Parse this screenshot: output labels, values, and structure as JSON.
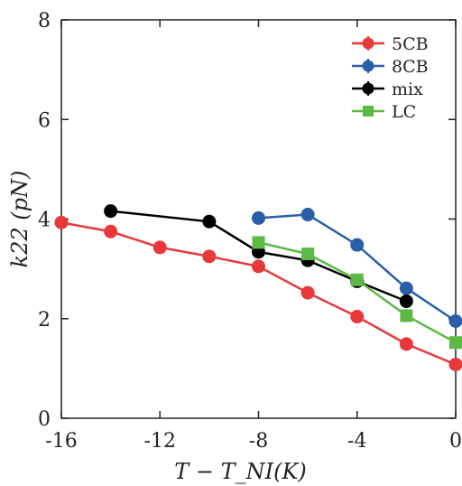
{
  "chart_data": {
    "type": "line",
    "xlabel": "T − T_NI(K)",
    "ylabel": "k22 (pN)",
    "xlim": [
      -16,
      0
    ],
    "ylim": [
      0,
      8
    ],
    "xticks": [
      -16,
      -12,
      -8,
      -4,
      0
    ],
    "xtick_labels": [
      "-16",
      "-12",
      "-8",
      "-4",
      "0"
    ],
    "yticks": [
      0,
      2,
      4,
      6,
      8
    ],
    "ytick_labels": [
      "0",
      "2",
      "4",
      "6",
      "8"
    ],
    "grid": false,
    "legend_position": "top-right",
    "series": [
      {
        "name": "5CB",
        "color": "#e8383a",
        "marker": "circle",
        "x": [
          -16,
          -14,
          -12,
          -10,
          -8,
          -6,
          -4,
          -2,
          0
        ],
        "y": [
          3.93,
          3.75,
          3.43,
          3.25,
          3.05,
          2.52,
          2.04,
          1.49,
          1.08
        ]
      },
      {
        "name": "8CB",
        "color": "#2a5ea8",
        "marker": "circle",
        "x": [
          -8,
          -6,
          -4,
          -2,
          0
        ],
        "y": [
          4.02,
          4.09,
          3.48,
          2.61,
          1.95
        ]
      },
      {
        "name": "mix",
        "color": "#000000",
        "marker": "circle",
        "x": [
          -14,
          -10,
          -8,
          -6,
          -4,
          -2
        ],
        "y": [
          4.16,
          3.95,
          3.34,
          3.17,
          2.75,
          2.35
        ]
      },
      {
        "name": "LC",
        "color": "#5cb946",
        "marker": "square",
        "x": [
          -8,
          -6,
          -4,
          -2,
          0
        ],
        "y": [
          3.53,
          3.3,
          2.78,
          2.06,
          1.52
        ]
      }
    ]
  }
}
